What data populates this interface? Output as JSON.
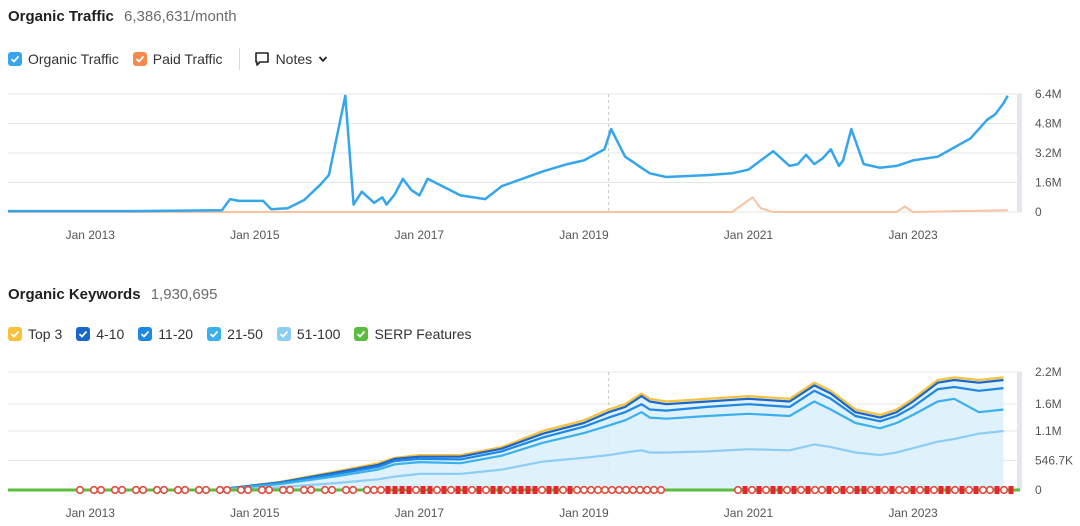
{
  "traffic": {
    "title": "Organic Traffic",
    "value": "6,386,631/month",
    "legend": [
      {
        "label": "Organic Traffic",
        "color": "#35a6ec"
      },
      {
        "label": "Paid Traffic",
        "color": "#f5894e"
      }
    ],
    "notes_label": "Notes"
  },
  "keywords": {
    "title": "Organic Keywords",
    "value": "1,930,695",
    "legend": [
      {
        "label": "Top 3",
        "color": "#f7c13b"
      },
      {
        "label": "4-10",
        "color": "#1b66c9"
      },
      {
        "label": "11-20",
        "color": "#1d88e5"
      },
      {
        "label": "21-50",
        "color": "#3ab0ef"
      },
      {
        "label": "51-100",
        "color": "#8ccdf5"
      },
      {
        "label": "SERP Features",
        "color": "#5bbd3e"
      }
    ]
  },
  "chart_data": [
    {
      "type": "line",
      "title": "Organic Traffic",
      "x_tick_labels": [
        "Jan 2013",
        "Jan 2015",
        "Jan 2017",
        "Jan 2019",
        "Jan 2021",
        "Jan 2023"
      ],
      "x_tick_years": [
        2013,
        2015,
        2017,
        2019,
        2021,
        2023
      ],
      "xlim": [
        2012.0,
        2024.3
      ],
      "y_tick_labels": [
        "6.4M",
        "4.8M",
        "3.2M",
        "1.6M",
        "0"
      ],
      "y_tick_values": [
        6400000,
        4800000,
        3200000,
        1600000,
        0
      ],
      "ylim": [
        0,
        6400000
      ],
      "marker_x": 2019.3,
      "series": [
        {
          "name": "Organic Traffic",
          "color": "#35a6ec",
          "x": [
            2012.0,
            2013.5,
            2014.6,
            2014.7,
            2014.8,
            2015.1,
            2015.2,
            2015.4,
            2015.6,
            2015.8,
            2015.9,
            2016.1,
            2016.2,
            2016.3,
            2016.4,
            2016.45,
            2016.55,
            2016.6,
            2016.7,
            2016.8,
            2016.9,
            2017.0,
            2017.1,
            2017.5,
            2017.8,
            2018.0,
            2018.5,
            2018.8,
            2019.0,
            2019.25,
            2019.33,
            2019.5,
            2019.6,
            2019.7,
            2019.8,
            2020.0,
            2020.5,
            2020.8,
            2021.0,
            2021.15,
            2021.3,
            2021.5,
            2021.6,
            2021.7,
            2021.8,
            2021.9,
            2022.0,
            2022.1,
            2022.15,
            2022.25,
            2022.4,
            2022.6,
            2022.8,
            2023.0,
            2023.3,
            2023.5,
            2023.7,
            2023.9,
            2024.0,
            2024.1,
            2024.15
          ],
          "y": [
            50000,
            50000,
            100000,
            700000,
            600000,
            600000,
            150000,
            200000,
            650000,
            1500000,
            2000000,
            6300000,
            400000,
            1100000,
            700000,
            500000,
            800000,
            400000,
            950000,
            1800000,
            1200000,
            900000,
            1800000,
            900000,
            700000,
            1400000,
            2200000,
            2600000,
            2800000,
            3400000,
            4500000,
            3000000,
            2700000,
            2400000,
            2100000,
            1900000,
            2000000,
            2100000,
            2300000,
            2800000,
            3300000,
            2500000,
            2600000,
            3100000,
            2600000,
            2900000,
            3400000,
            2500000,
            2800000,
            4500000,
            2600000,
            2400000,
            2500000,
            2800000,
            3000000,
            3500000,
            4000000,
            5000000,
            5300000,
            5900000,
            6300000
          ]
        },
        {
          "name": "Paid Traffic",
          "color": "#f5894e",
          "x": [
            2012.0,
            2020.8,
            2021.05,
            2021.15,
            2021.3,
            2021.6,
            2022.8,
            2022.9,
            2023.0,
            2024.15
          ],
          "y": [
            0,
            0,
            800000,
            200000,
            0,
            0,
            0,
            300000,
            0,
            100000
          ]
        }
      ]
    },
    {
      "type": "area",
      "title": "Organic Keywords",
      "x_tick_labels": [
        "Jan 2013",
        "Jan 2015",
        "Jan 2017",
        "Jan 2019",
        "Jan 2021",
        "Jan 2023"
      ],
      "x_tick_years": [
        2013,
        2015,
        2017,
        2019,
        2021,
        2023
      ],
      "xlim": [
        2012.0,
        2024.3
      ],
      "y_tick_labels": [
        "2.2M",
        "1.6M",
        "1.1M",
        "546.7K",
        "0"
      ],
      "y_tick_values": [
        2200000,
        1600000,
        1100000,
        546700,
        0
      ],
      "ylim": [
        0,
        2200000
      ],
      "marker_x": 2019.3,
      "x": [
        2012.0,
        2014.5,
        2015.3,
        2016.0,
        2016.5,
        2016.7,
        2017.0,
        2017.5,
        2018.0,
        2018.5,
        2019.0,
        2019.3,
        2019.5,
        2019.7,
        2019.8,
        2020.0,
        2020.5,
        2021.0,
        2021.5,
        2021.8,
        2022.0,
        2022.3,
        2022.6,
        2022.8,
        2023.0,
        2023.3,
        2023.5,
        2023.8,
        2024.1
      ],
      "series": [
        {
          "name": "Top 3",
          "color": "#f7c13b",
          "values": [
            0,
            0,
            150000,
            350000,
            500000,
            600000,
            650000,
            650000,
            800000,
            1100000,
            1300000,
            1500000,
            1600000,
            1800000,
            1700000,
            1650000,
            1700000,
            1750000,
            1700000,
            2000000,
            1850000,
            1500000,
            1400000,
            1500000,
            1700000,
            2050000,
            2100000,
            2050000,
            2100000
          ]
        },
        {
          "name": "4-10",
          "color": "#1b66c9",
          "values": [
            0,
            0,
            140000,
            330000,
            470000,
            580000,
            620000,
            620000,
            770000,
            1050000,
            1250000,
            1450000,
            1550000,
            1750000,
            1650000,
            1600000,
            1650000,
            1700000,
            1650000,
            1950000,
            1800000,
            1450000,
            1350000,
            1450000,
            1650000,
            2000000,
            2050000,
            2000000,
            2050000
          ]
        },
        {
          "name": "11-20",
          "color": "#1d88e5",
          "values": [
            0,
            0,
            130000,
            300000,
            430000,
            540000,
            580000,
            570000,
            720000,
            980000,
            1180000,
            1350000,
            1450000,
            1600000,
            1500000,
            1480000,
            1550000,
            1600000,
            1550000,
            1850000,
            1700000,
            1380000,
            1280000,
            1380000,
            1550000,
            1880000,
            1920000,
            1850000,
            1900000
          ]
        },
        {
          "name": "21-50",
          "color": "#3ab0ef",
          "values": [
            0,
            0,
            110000,
            260000,
            380000,
            480000,
            520000,
            500000,
            640000,
            880000,
            1060000,
            1200000,
            1300000,
            1450000,
            1350000,
            1330000,
            1380000,
            1420000,
            1380000,
            1650000,
            1500000,
            1250000,
            1150000,
            1250000,
            1400000,
            1650000,
            1700000,
            1450000,
            1500000
          ]
        },
        {
          "name": "51-100",
          "color": "#8ccdf5",
          "values": [
            0,
            0,
            50000,
            130000,
            200000,
            250000,
            300000,
            300000,
            380000,
            530000,
            600000,
            650000,
            700000,
            740000,
            700000,
            700000,
            720000,
            760000,
            740000,
            850000,
            800000,
            700000,
            650000,
            700000,
            780000,
            900000,
            950000,
            1050000,
            1100000
          ]
        }
      ]
    }
  ]
}
